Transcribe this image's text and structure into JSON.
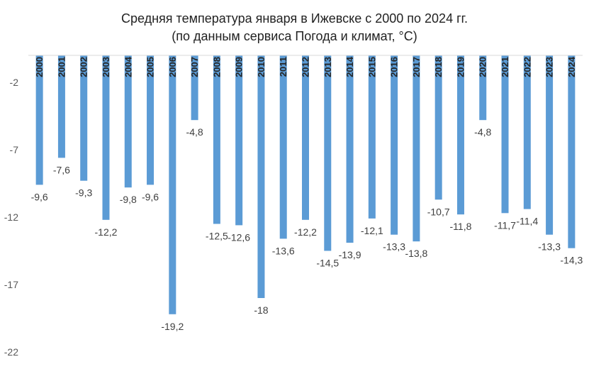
{
  "chart_data": {
    "type": "bar",
    "title": "Средняя температура января в Ижевске с 2000 по 2024 гг.",
    "subtitle": "(по данным сервиса Погода и климат, °C)",
    "categories": [
      "2000",
      "2001",
      "2002",
      "2003",
      "2004",
      "2005",
      "2006",
      "2007",
      "2008",
      "2009",
      "2010",
      "2011",
      "2012",
      "2013",
      "2014",
      "2015",
      "2016",
      "2017",
      "2018",
      "2019",
      "2020",
      "2021",
      "2022",
      "2023",
      "2024"
    ],
    "values": [
      -9.6,
      -7.6,
      -9.3,
      -12.2,
      -9.8,
      -9.6,
      -19.2,
      -4.8,
      -12.5,
      -12.6,
      -18,
      -13.6,
      -12.2,
      -14.5,
      -13.9,
      -12.1,
      -13.3,
      -13.8,
      -10.7,
      -11.8,
      -4.8,
      -11.7,
      -11.4,
      -13.3,
      -14.3
    ],
    "value_labels": [
      "-9,6",
      "-7,6",
      "-9,3",
      "-12,2",
      "-9,8",
      "-9,6",
      "-19,2",
      "-4,8",
      "-12,5",
      "-12,6",
      "-18",
      "-13,6",
      "-12,2",
      "-14,5",
      "-13,9",
      "-12,1",
      "-13,3",
      "-13,8",
      "-10,7",
      "-11,8",
      "-4,8",
      "-11,7",
      "-11,4",
      "-13,3",
      "-14,3"
    ],
    "yticks": [
      -2,
      -7,
      -12,
      -17,
      -22
    ],
    "ylim": [
      -22,
      0
    ],
    "xlabel": "",
    "ylabel": "",
    "grid": false,
    "legend": "none",
    "bar_color": "#5B9BD5",
    "axis_color": "#D9D9D9"
  }
}
